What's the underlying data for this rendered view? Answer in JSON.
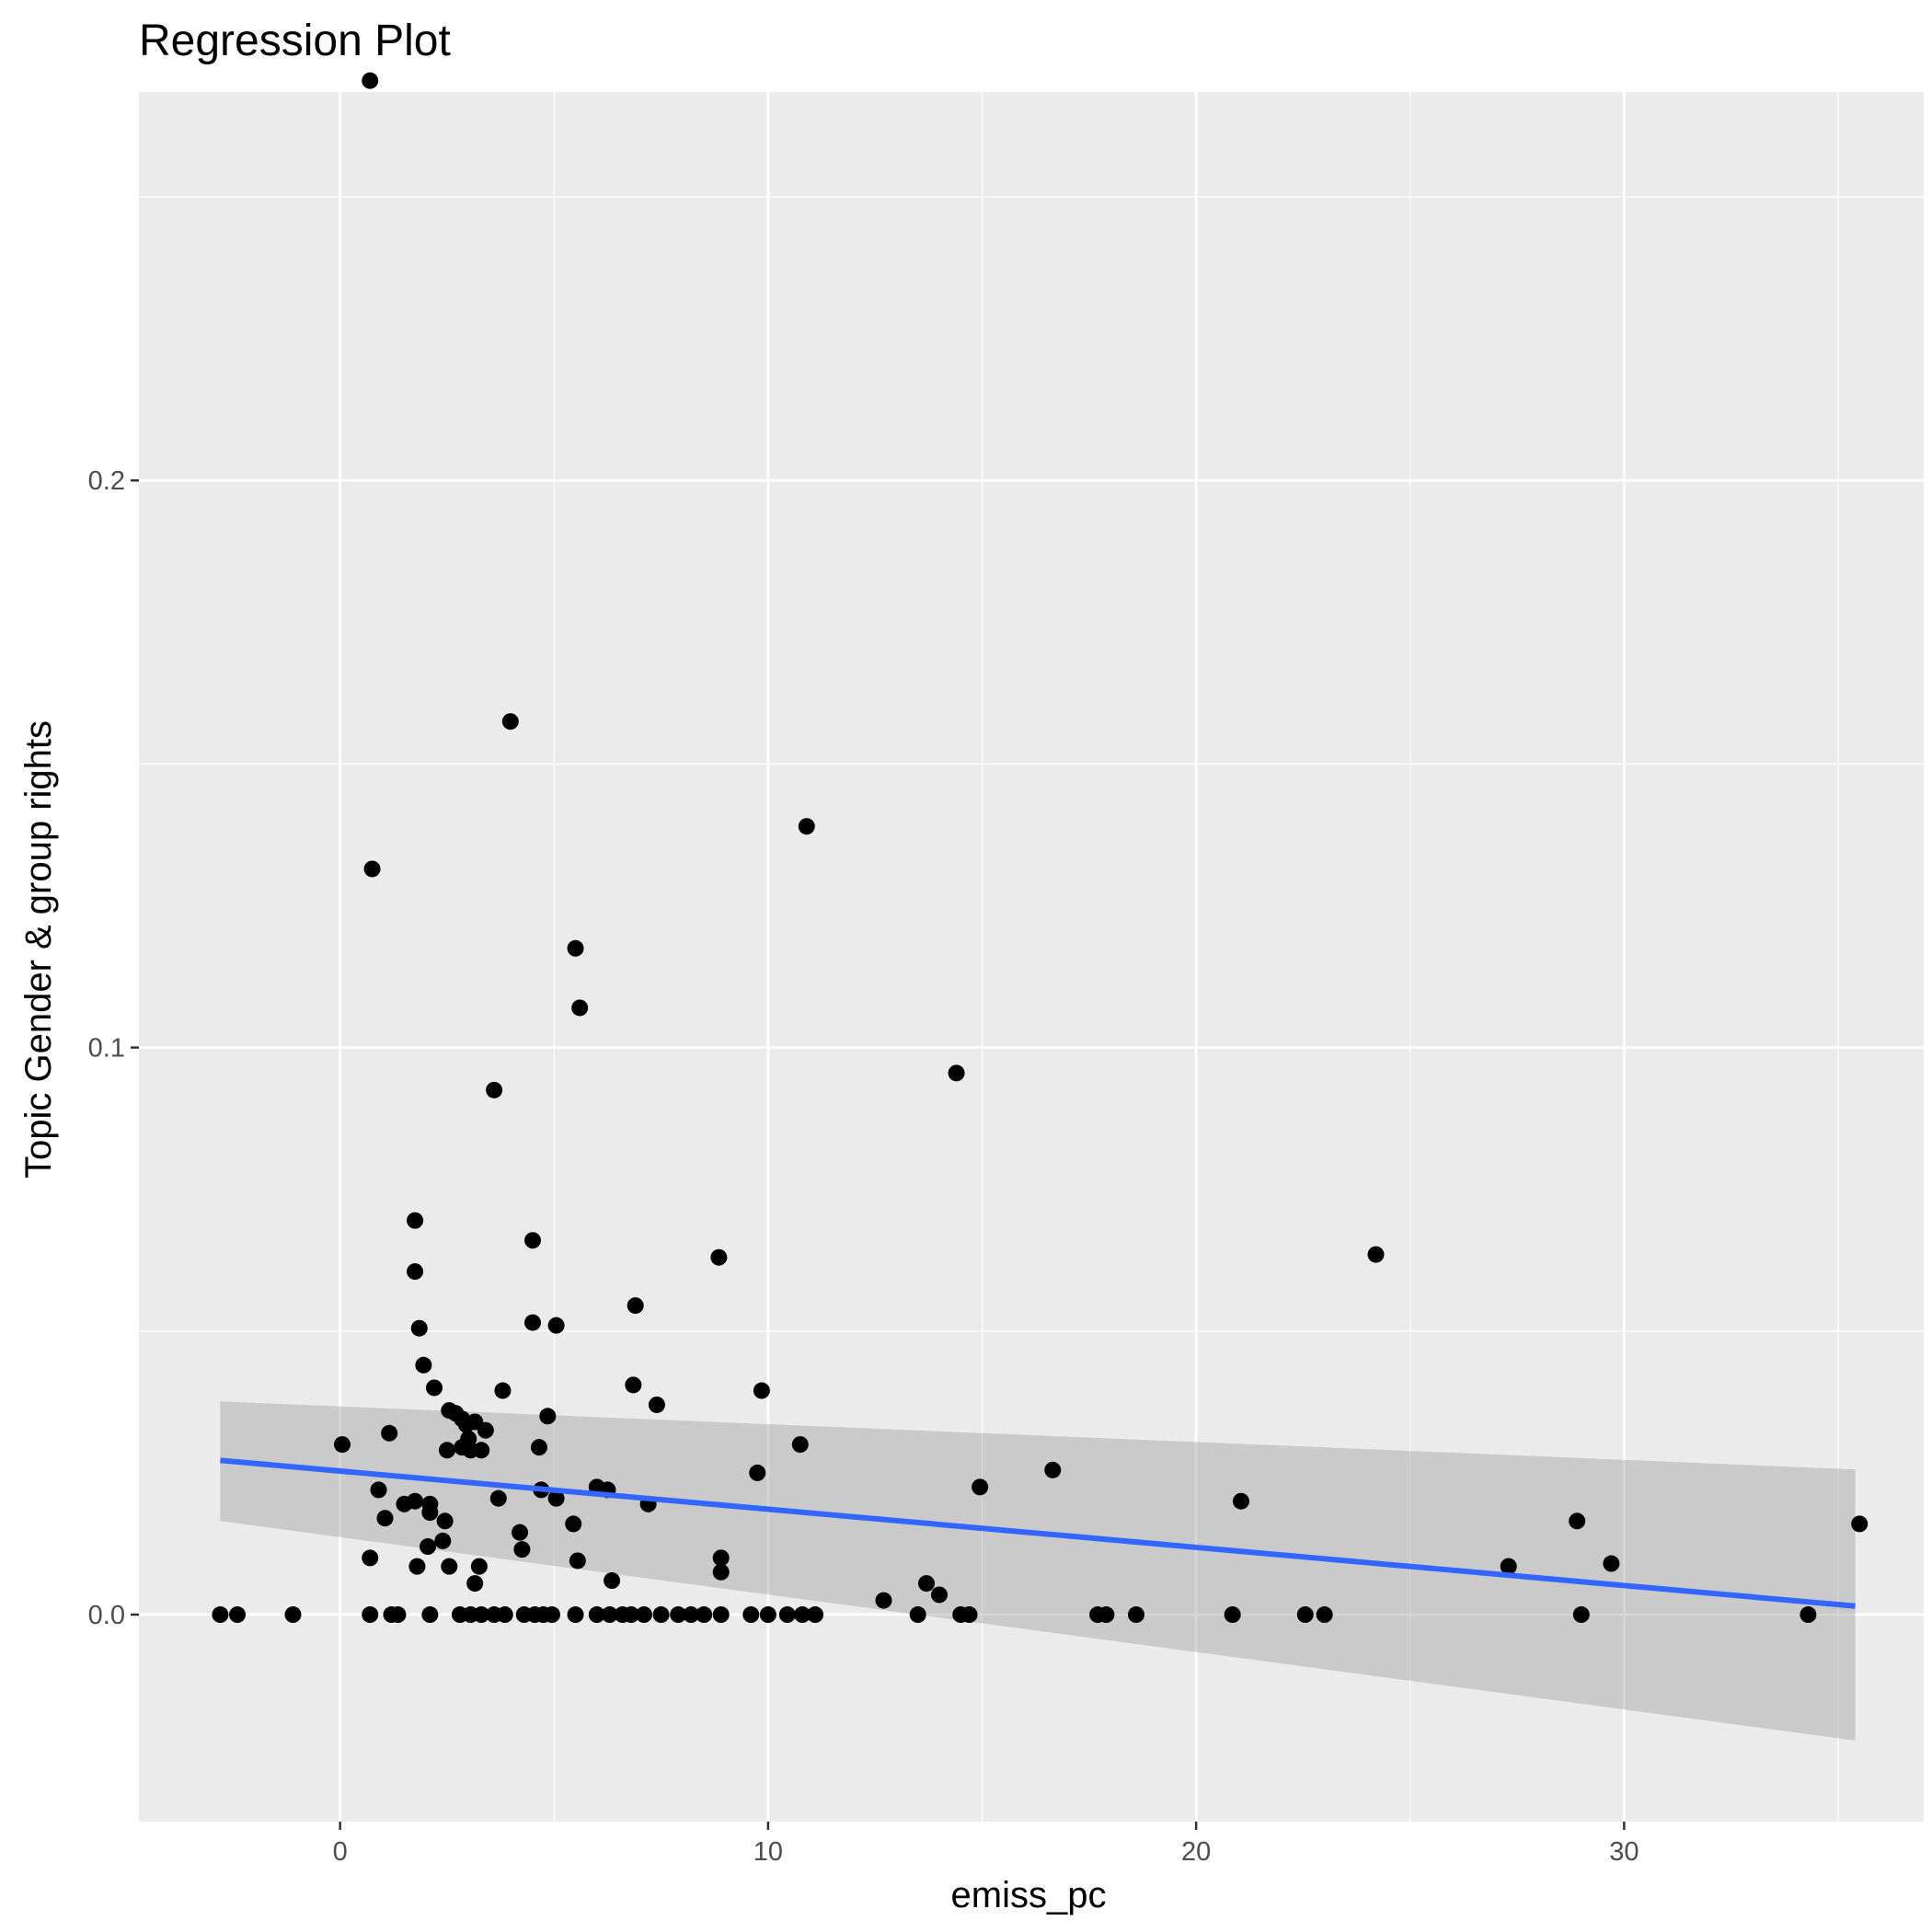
{
  "chart_data": {
    "type": "scatter",
    "title": "Regression Plot",
    "xlabel": "emiss_pc",
    "ylabel": "Topic Gender & group rights",
    "xlim": [
      -4.7,
      37.0
    ],
    "ylim": [
      -0.0365,
      0.2685
    ],
    "x_ticks": [
      0,
      10,
      20,
      30
    ],
    "x_tick_labels": [
      "0",
      "10",
      "20",
      "30"
    ],
    "y_ticks": [
      0.0,
      0.1,
      0.2
    ],
    "y_tick_labels": [
      "0.0",
      "0.1",
      "0.2"
    ],
    "grid": true,
    "colors": {
      "panel_background": "#ebebeb",
      "grid": "#ffffff",
      "points": "#000000",
      "fit_line": "#3366ff",
      "confidence_band": "#999999"
    },
    "regression": {
      "x": [
        -2.8,
        35.4
      ],
      "y": [
        0.0272,
        0.0015
      ],
      "ci_lower": [
        0.0165,
        -0.0222
      ],
      "ci_upper": [
        0.0376,
        0.0256
      ]
    },
    "points": [
      [
        0.7,
        0.2705
      ],
      [
        3.98,
        0.1575
      ],
      [
        10.9,
        0.139
      ],
      [
        0.75,
        0.1315
      ],
      [
        5.5,
        0.1175
      ],
      [
        5.6,
        0.107
      ],
      [
        14.4,
        0.0955
      ],
      [
        3.6,
        0.0925
      ],
      [
        1.75,
        0.0695
      ],
      [
        4.5,
        0.066
      ],
      [
        8.85,
        0.063
      ],
      [
        24.2,
        0.0635
      ],
      [
        1.75,
        0.0605
      ],
      [
        6.9,
        0.0545
      ],
      [
        1.85,
        0.0505
      ],
      [
        4.5,
        0.0515
      ],
      [
        5.05,
        0.051
      ],
      [
        1.95,
        0.044
      ],
      [
        2.2,
        0.04
      ],
      [
        3.8,
        0.0395
      ],
      [
        6.85,
        0.0405
      ],
      [
        9.85,
        0.0395
      ],
      [
        7.4,
        0.037
      ],
      [
        2.55,
        0.036
      ],
      [
        2.7,
        0.0355
      ],
      [
        4.85,
        0.035
      ],
      [
        2.85,
        0.0345
      ],
      [
        3.15,
        0.034
      ],
      [
        2.95,
        0.0335
      ],
      [
        3.4,
        0.0325
      ],
      [
        1.15,
        0.032
      ],
      [
        3.0,
        0.031
      ],
      [
        0.05,
        0.03
      ],
      [
        4.65,
        0.0295
      ],
      [
        2.5,
        0.029
      ],
      [
        2.85,
        0.0295
      ],
      [
        3.05,
        0.029
      ],
      [
        3.3,
        0.029
      ],
      [
        10.75,
        0.03
      ],
      [
        9.75,
        0.025
      ],
      [
        16.65,
        0.0255
      ],
      [
        0.9,
        0.022
      ],
      [
        6.0,
        0.0225
      ],
      [
        6.25,
        0.022
      ],
      [
        14.95,
        0.0225
      ],
      [
        4.7,
        0.022
      ],
      [
        5.05,
        0.0205
      ],
      [
        3.7,
        0.0205
      ],
      [
        1.5,
        0.0195
      ],
      [
        1.75,
        0.02
      ],
      [
        2.1,
        0.0195
      ],
      [
        7.2,
        0.0195
      ],
      [
        21.05,
        0.02
      ],
      [
        1.05,
        0.017
      ],
      [
        2.1,
        0.018
      ],
      [
        2.45,
        0.0165
      ],
      [
        5.45,
        0.016
      ],
      [
        28.9,
        0.0165
      ],
      [
        35.5,
        0.016
      ],
      [
        4.2,
        0.0145
      ],
      [
        2.4,
        0.013
      ],
      [
        2.05,
        0.012
      ],
      [
        4.25,
        0.0115
      ],
      [
        0.7,
        0.01
      ],
      [
        5.55,
        0.0095
      ],
      [
        8.9,
        0.01
      ],
      [
        1.8,
        0.0085
      ],
      [
        2.55,
        0.0085
      ],
      [
        3.25,
        0.0085
      ],
      [
        8.9,
        0.0075
      ],
      [
        27.3,
        0.0085
      ],
      [
        29.7,
        0.009
      ],
      [
        6.35,
        0.006
      ],
      [
        3.15,
        0.0055
      ],
      [
        13.7,
        0.0055
      ],
      [
        14.0,
        0.0035
      ],
      [
        12.7,
        0.0025
      ],
      [
        -2.8,
        0.0
      ],
      [
        -2.4,
        0.0
      ],
      [
        -1.1,
        0.0
      ],
      [
        0.7,
        0.0
      ],
      [
        1.2,
        0.0
      ],
      [
        1.35,
        0.0
      ],
      [
        2.1,
        0.0
      ],
      [
        2.8,
        0.0
      ],
      [
        3.05,
        0.0
      ],
      [
        3.3,
        0.0
      ],
      [
        3.6,
        0.0
      ],
      [
        3.85,
        0.0
      ],
      [
        4.3,
        0.0
      ],
      [
        4.55,
        0.0
      ],
      [
        4.75,
        0.0
      ],
      [
        4.95,
        0.0
      ],
      [
        5.5,
        0.0
      ],
      [
        6.0,
        0.0
      ],
      [
        6.3,
        0.0
      ],
      [
        6.6,
        0.0
      ],
      [
        6.8,
        0.0
      ],
      [
        7.1,
        0.0
      ],
      [
        7.5,
        0.0
      ],
      [
        7.9,
        0.0
      ],
      [
        8.2,
        0.0
      ],
      [
        8.5,
        0.0
      ],
      [
        8.9,
        0.0
      ],
      [
        9.6,
        0.0
      ],
      [
        10.0,
        0.0
      ],
      [
        10.45,
        0.0
      ],
      [
        10.8,
        0.0
      ],
      [
        11.1,
        0.0
      ],
      [
        13.5,
        0.0
      ],
      [
        14.5,
        0.0
      ],
      [
        14.7,
        0.0
      ],
      [
        17.7,
        0.0
      ],
      [
        17.9,
        0.0
      ],
      [
        18.6,
        0.0
      ],
      [
        20.85,
        0.0
      ],
      [
        22.55,
        0.0
      ],
      [
        23.0,
        0.0
      ],
      [
        29.0,
        0.0
      ],
      [
        34.3,
        0.0
      ]
    ]
  }
}
